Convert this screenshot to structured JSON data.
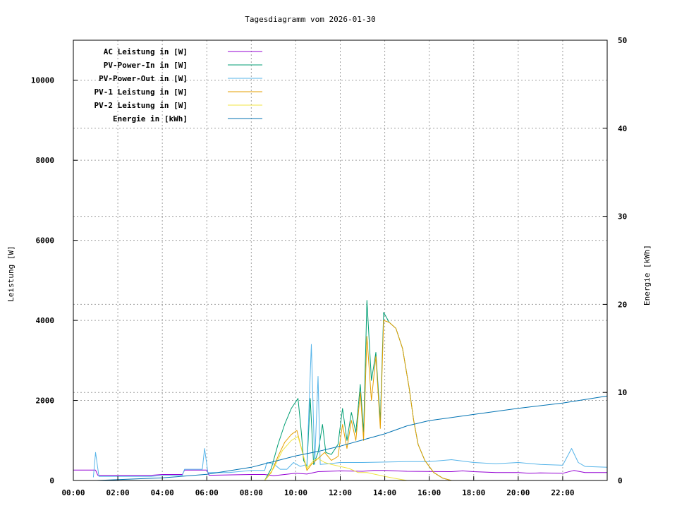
{
  "chart_data": {
    "type": "line",
    "title": "Tagesdiagramm vom 2026-01-30",
    "xlabel": "",
    "ylabel": "Leistung [W]",
    "y2label": "Energie [kWh]",
    "x_range_hours": [
      0,
      24
    ],
    "ylim": [
      0,
      11000
    ],
    "y2lim": [
      0,
      50
    ],
    "x_ticks": [
      "00:00",
      "02:00",
      "04:00",
      "06:00",
      "08:00",
      "10:00",
      "12:00",
      "14:00",
      "16:00",
      "18:00",
      "20:00",
      "22:00"
    ],
    "y_ticks": [
      0,
      2000,
      4000,
      6000,
      8000,
      10000
    ],
    "y2_ticks": [
      0,
      10,
      20,
      30,
      40,
      50
    ],
    "grid": true,
    "legend_position": "top-left",
    "series": [
      {
        "name": "AC Leistung in [W]",
        "color": "#9400d3",
        "axis": "y",
        "points": [
          [
            0,
            260
          ],
          [
            1,
            260
          ],
          [
            1.1,
            130
          ],
          [
            3.5,
            130
          ],
          [
            4,
            150
          ],
          [
            4.9,
            150
          ],
          [
            5,
            260
          ],
          [
            6,
            260
          ],
          [
            6.1,
            130
          ],
          [
            8,
            150
          ],
          [
            8.6,
            150
          ],
          [
            9,
            120
          ],
          [
            9.5,
            150
          ],
          [
            10,
            180
          ],
          [
            10.5,
            160
          ],
          [
            11,
            220
          ],
          [
            12,
            240
          ],
          [
            13,
            230
          ],
          [
            13.5,
            250
          ],
          [
            14,
            250
          ],
          [
            15,
            230
          ],
          [
            17,
            220
          ],
          [
            17.5,
            240
          ],
          [
            18,
            220
          ],
          [
            19,
            200
          ],
          [
            20,
            200
          ],
          [
            20.5,
            180
          ],
          [
            21,
            190
          ],
          [
            22,
            180
          ],
          [
            22.5,
            250
          ],
          [
            23,
            200
          ],
          [
            24,
            200
          ]
        ]
      },
      {
        "name": "PV-Power-In in [W]",
        "color": "#009e73",
        "axis": "y",
        "points": [
          [
            8.6,
            0
          ],
          [
            8.9,
            300
          ],
          [
            9.2,
            900
          ],
          [
            9.5,
            1400
          ],
          [
            9.8,
            1800
          ],
          [
            10.1,
            2050
          ],
          [
            10.25,
            1200
          ],
          [
            10.35,
            500
          ],
          [
            10.5,
            350
          ],
          [
            10.65,
            2050
          ],
          [
            10.8,
            400
          ],
          [
            11,
            700
          ],
          [
            11.2,
            1400
          ],
          [
            11.35,
            700
          ],
          [
            11.6,
            650
          ],
          [
            11.9,
            900
          ],
          [
            12.1,
            1800
          ],
          [
            12.3,
            1000
          ],
          [
            12.5,
            1700
          ],
          [
            12.7,
            1200
          ],
          [
            12.9,
            2400
          ],
          [
            13.05,
            1200
          ],
          [
            13.2,
            4500
          ],
          [
            13.4,
            2500
          ],
          [
            13.6,
            3200
          ],
          [
            13.8,
            1500
          ],
          [
            13.95,
            4200
          ],
          [
            14.2,
            3950
          ],
          [
            14.5,
            3800
          ],
          [
            14.8,
            3300
          ],
          [
            15.1,
            2300
          ],
          [
            15.3,
            1500
          ],
          [
            15.5,
            900
          ],
          [
            15.8,
            500
          ],
          [
            16.2,
            200
          ],
          [
            16.6,
            60
          ],
          [
            17,
            0
          ]
        ]
      },
      {
        "name": "PV-Power-Out in [W]",
        "color": "#56b4e9",
        "axis": "y",
        "points": [
          [
            0.9,
            80
          ],
          [
            1,
            700
          ],
          [
            1.15,
            100
          ],
          [
            3.5,
            100
          ],
          [
            4,
            130
          ],
          [
            4.9,
            130
          ],
          [
            5,
            280
          ],
          [
            5.8,
            280
          ],
          [
            5.9,
            800
          ],
          [
            6.05,
            200
          ],
          [
            7,
            200
          ],
          [
            8,
            250
          ],
          [
            8.6,
            250
          ],
          [
            8.7,
            450
          ],
          [
            9,
            420
          ],
          [
            9.3,
            280
          ],
          [
            9.6,
            280
          ],
          [
            9.9,
            450
          ],
          [
            10.2,
            350
          ],
          [
            10.5,
            400
          ],
          [
            10.7,
            3400
          ],
          [
            10.85,
            400
          ],
          [
            11,
            2600
          ],
          [
            11.1,
            400
          ],
          [
            11.5,
            420
          ],
          [
            12,
            450
          ],
          [
            13,
            450
          ],
          [
            14,
            460
          ],
          [
            15,
            470
          ],
          [
            16,
            470
          ],
          [
            17,
            520
          ],
          [
            18,
            450
          ],
          [
            19,
            420
          ],
          [
            20,
            450
          ],
          [
            21,
            400
          ],
          [
            22,
            380
          ],
          [
            22.4,
            800
          ],
          [
            22.7,
            450
          ],
          [
            23,
            350
          ],
          [
            24,
            330
          ]
        ]
      },
      {
        "name": "PV-1 Leistung in [W]",
        "color": "#e69f00",
        "axis": "y",
        "points": [
          [
            8.6,
            0
          ],
          [
            8.9,
            200
          ],
          [
            9.2,
            600
          ],
          [
            9.5,
            950
          ],
          [
            9.8,
            1150
          ],
          [
            10.05,
            1250
          ],
          [
            10.3,
            700
          ],
          [
            10.5,
            250
          ],
          [
            10.7,
            400
          ],
          [
            11,
            550
          ],
          [
            11.3,
            700
          ],
          [
            11.6,
            500
          ],
          [
            11.9,
            600
          ],
          [
            12.1,
            1400
          ],
          [
            12.3,
            800
          ],
          [
            12.5,
            1500
          ],
          [
            12.7,
            1000
          ],
          [
            12.9,
            2200
          ],
          [
            13.05,
            1000
          ],
          [
            13.2,
            3600
          ],
          [
            13.4,
            2000
          ],
          [
            13.6,
            3100
          ],
          [
            13.8,
            1300
          ],
          [
            13.95,
            4000
          ],
          [
            14.2,
            3950
          ],
          [
            14.5,
            3800
          ],
          [
            14.8,
            3300
          ],
          [
            15.1,
            2300
          ],
          [
            15.3,
            1500
          ],
          [
            15.5,
            900
          ],
          [
            15.8,
            500
          ],
          [
            16.2,
            200
          ],
          [
            16.6,
            60
          ],
          [
            17,
            0
          ]
        ]
      },
      {
        "name": "PV-2 Leistung in [W]",
        "color": "#f0e442",
        "axis": "y",
        "points": [
          [
            8.6,
            0
          ],
          [
            9,
            300
          ],
          [
            9.4,
            750
          ],
          [
            9.8,
            1000
          ],
          [
            10.1,
            1100
          ],
          [
            10.3,
            700
          ],
          [
            10.5,
            300
          ],
          [
            10.8,
            500
          ],
          [
            11,
            550
          ],
          [
            11.3,
            450
          ],
          [
            11.6,
            400
          ],
          [
            12,
            350
          ],
          [
            12.4,
            300
          ],
          [
            12.8,
            200
          ],
          [
            13.2,
            200
          ],
          [
            13.6,
            150
          ],
          [
            14,
            100
          ],
          [
            14.5,
            50
          ],
          [
            15,
            0
          ]
        ]
      },
      {
        "name": "Energie in [kWh]",
        "color": "#0072b2",
        "axis": "y2",
        "points": [
          [
            1.05,
            0
          ],
          [
            4,
            0.3
          ],
          [
            6,
            0.7
          ],
          [
            8,
            1.5
          ],
          [
            10,
            2.8
          ],
          [
            11,
            3.3
          ],
          [
            12,
            3.9
          ],
          [
            13,
            4.6
          ],
          [
            14,
            5.3
          ],
          [
            15,
            6.2
          ],
          [
            16,
            6.8
          ],
          [
            18,
            7.5
          ],
          [
            20,
            8.2
          ],
          [
            22,
            8.8
          ],
          [
            23,
            9.2
          ],
          [
            24,
            9.6
          ]
        ]
      }
    ]
  }
}
